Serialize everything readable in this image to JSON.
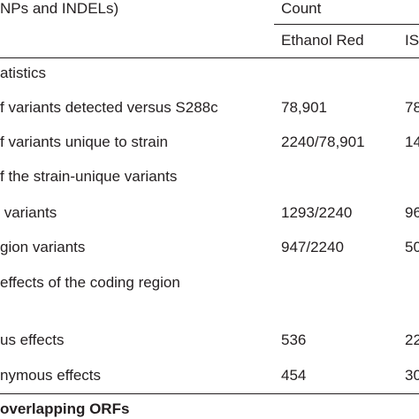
{
  "header": {
    "title": "NPs and INDELs)",
    "count": "Count",
    "col1": "Ethanol Red",
    "col2": "IS"
  },
  "rows": [
    {
      "label": "atistics"
    },
    {
      "label": "f variants detected versus S288c",
      "col1": "78,901",
      "col2": "78"
    },
    {
      "label": "f variants unique to strain",
      "col1": "2240/78,901",
      "col2": "14"
    },
    {
      "label": "f the strain-unique variants"
    },
    {
      "label": " variants",
      "col1": "1293/2240",
      "col2": "96"
    },
    {
      "label": "gion variants",
      "col1": "947/2240",
      "col2": "50"
    },
    {
      "label": "effects of the coding region"
    },
    {
      "label": "us effects",
      "col1": "536",
      "col2": "22"
    },
    {
      "label": "nymous effects",
      "col1": "454",
      "col2": "30"
    }
  ],
  "footer": "overlapping ORFs"
}
